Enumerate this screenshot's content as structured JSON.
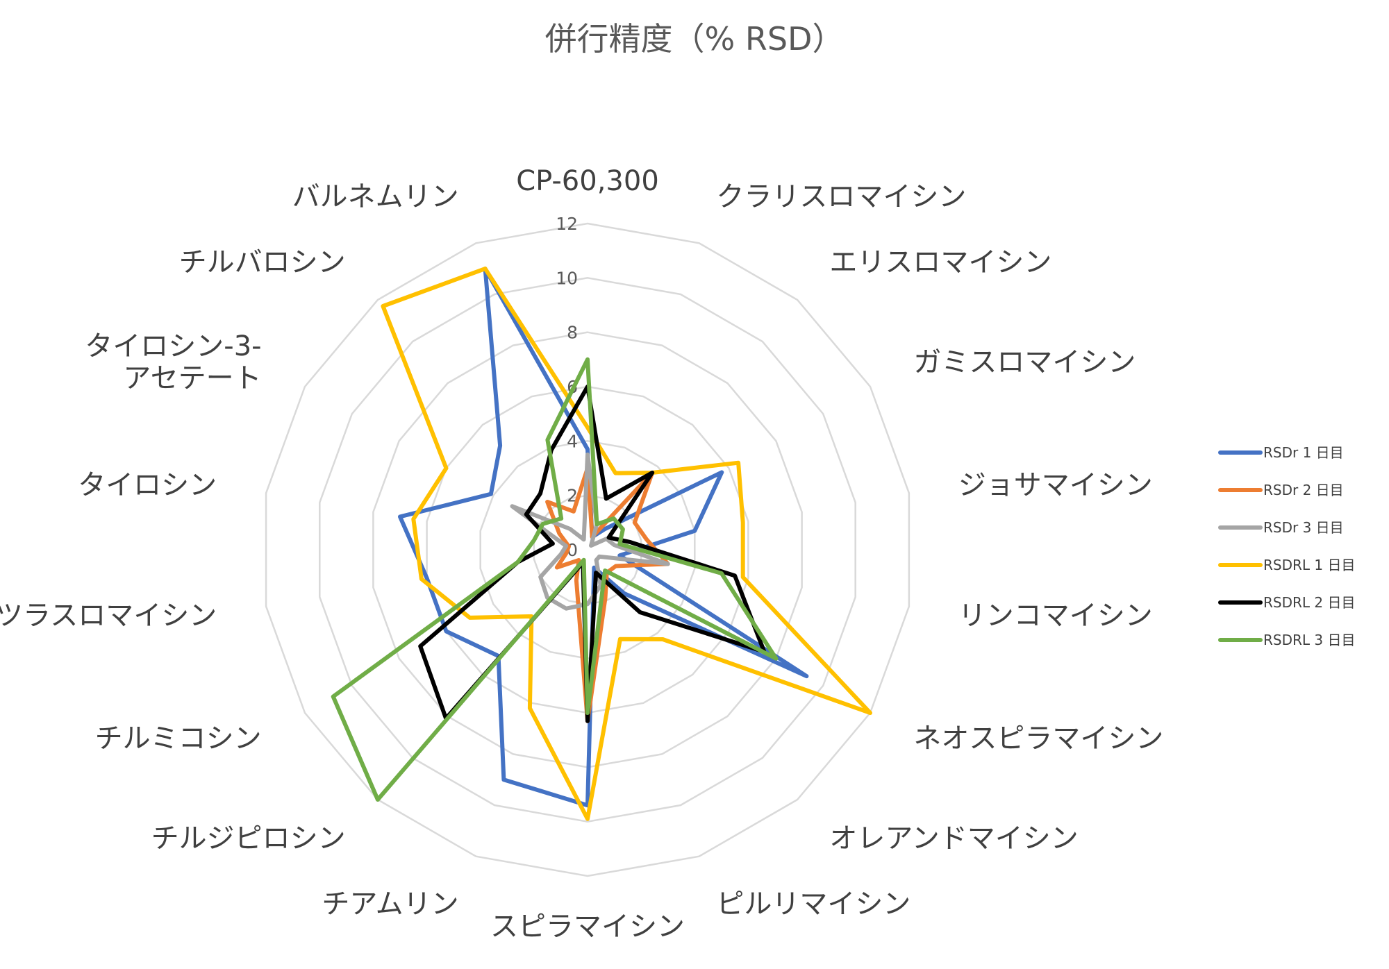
{
  "chart_data": {
    "type": "radar",
    "title": "併行精度（% RSD）",
    "categories": [
      "CP-60,300",
      "クラリスロマイシン",
      "エリスロマイシン",
      "ガミスロマイシン",
      "ジョサマイシン",
      "リンコマイシン",
      "ネオスピラマイシン",
      "オレアンドマイシン",
      "ピルリマイシン",
      "スピラマイシン",
      "チアムリン",
      "チルジピロシン",
      "チルミコシン",
      "ツラスロマイシン",
      "タイロシン",
      "タイロシン-3-アセテート",
      "チルバロシン",
      "バルネムリン"
    ],
    "category_label_lines": [
      [
        "CP-60,300"
      ],
      [
        "クラリスロマイシン"
      ],
      [
        "エリスロマイシン"
      ],
      [
        "ガミスロマイシン"
      ],
      [
        "ジョサマイシン"
      ],
      [
        "リンコマイシン"
      ],
      [
        "ネオスピラマイシン"
      ],
      [
        "オレアンドマイシン"
      ],
      [
        "ピルリマイシン"
      ],
      [
        "スピラマイシン"
      ],
      [
        "チアムリン"
      ],
      [
        "チルジピロシン"
      ],
      [
        "チルミコシン"
      ],
      [
        "ツラスロマイシン"
      ],
      [
        "タイロシン"
      ],
      [
        "タイロシン-3-",
        "アセテート"
      ],
      [
        "チルバロシン"
      ],
      [
        "バルネムリン"
      ]
    ],
    "radial_axis": {
      "min": 0,
      "max": 12,
      "step": 2,
      "ticks": [
        "0",
        "2",
        "4",
        "6",
        "8",
        "10",
        "12"
      ]
    },
    "grid": true,
    "legend_position": "right",
    "series": [
      {
        "name": "RSDr 1 日目",
        "color": "#4472C4",
        "values": [
          3.7,
          0.5,
          1.0,
          5.7,
          4.0,
          1.2,
          9.3,
          2.1,
          0.7,
          9.4,
          9.0,
          5.1,
          6.0,
          6.0,
          7.0,
          4.1,
          5.0,
          11.0
        ]
      },
      {
        "name": "RSDr 2 日目",
        "color": "#ED7D31",
        "values": [
          3.0,
          0.5,
          3.7,
          2.0,
          2.2,
          3.0,
          1.2,
          1.1,
          1.9,
          6.3,
          1.2,
          0.5,
          1.3,
          0.8,
          0.7,
          1.2,
          2.3,
          1.5
        ]
      },
      {
        "name": "RSDr 3 日目",
        "color": "#A5A5A5",
        "values": [
          3.5,
          1.0,
          0.2,
          0.8,
          1.0,
          3.0,
          0.5,
          0.5,
          1.4,
          2.0,
          2.3,
          2.3,
          2.0,
          1.0,
          0.8,
          3.2,
          1.0,
          0.4
        ]
      },
      {
        "name": "RSDRL 1 日目",
        "color": "#FFC000",
        "values": [
          4.5,
          3.0,
          3.7,
          6.4,
          5.8,
          5.8,
          12.0,
          4.3,
          3.5,
          9.9,
          6.2,
          3.2,
          5.0,
          6.2,
          6.5,
          6.0,
          11.7,
          11.0
        ]
      },
      {
        "name": "RSDRL 2 日目",
        "color": "#000000",
        "values": [
          6.0,
          2.0,
          3.7,
          0.9,
          1.6,
          5.5,
          7.5,
          3.0,
          0.9,
          6.3,
          0.5,
          8.1,
          7.1,
          2.6,
          1.3,
          2.6,
          2.7,
          3.9
        ]
      },
      {
        "name": "RSDRL 3 日目",
        "color": "#70AD47",
        "values": [
          7.0,
          1.0,
          1.5,
          1.5,
          1.2,
          5.0,
          8.0,
          1.0,
          1.6,
          6.0,
          0.4,
          12.0,
          10.8,
          2.6,
          2.0,
          1.9,
          1.5,
          4.3
        ]
      }
    ]
  }
}
